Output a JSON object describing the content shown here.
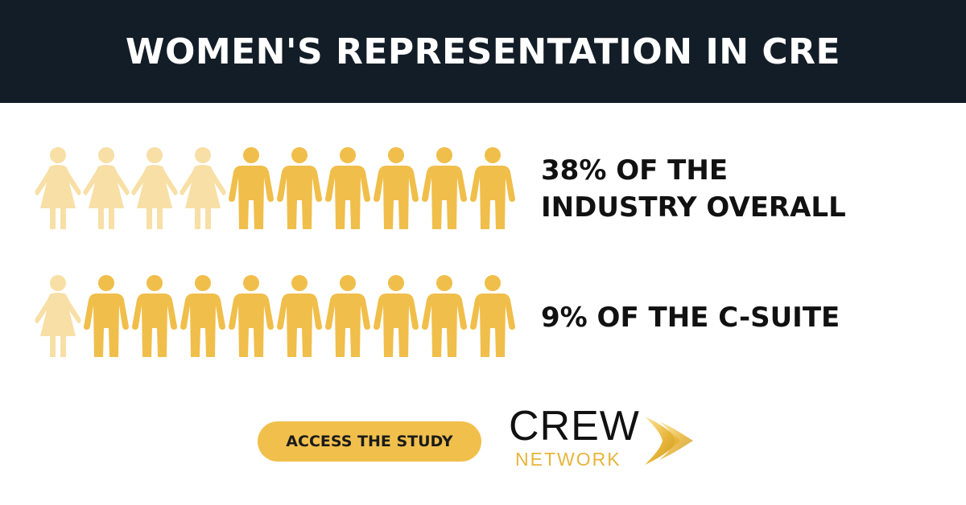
{
  "header": {
    "title": "WOMEN'S REPRESENTATION IN CRE"
  },
  "colors": {
    "women": "#f8dfa6",
    "men": "#f0be4a",
    "header_bg": "#131d27",
    "button_bg": "#f1c04c"
  },
  "chart_data": [
    {
      "type": "pictograph",
      "total_icons": 10,
      "highlighted_icons": 4,
      "value_percent": 38,
      "label": "38% OF THE INDUSTRY OVERALL"
    },
    {
      "type": "pictograph",
      "total_icons": 10,
      "highlighted_icons": 1,
      "value_percent": 9,
      "label": "9% OF THE C-SUITE"
    }
  ],
  "cta": {
    "label": "ACCESS THE STUDY"
  },
  "logo": {
    "crew": "CREW",
    "network": "NETWORK"
  }
}
